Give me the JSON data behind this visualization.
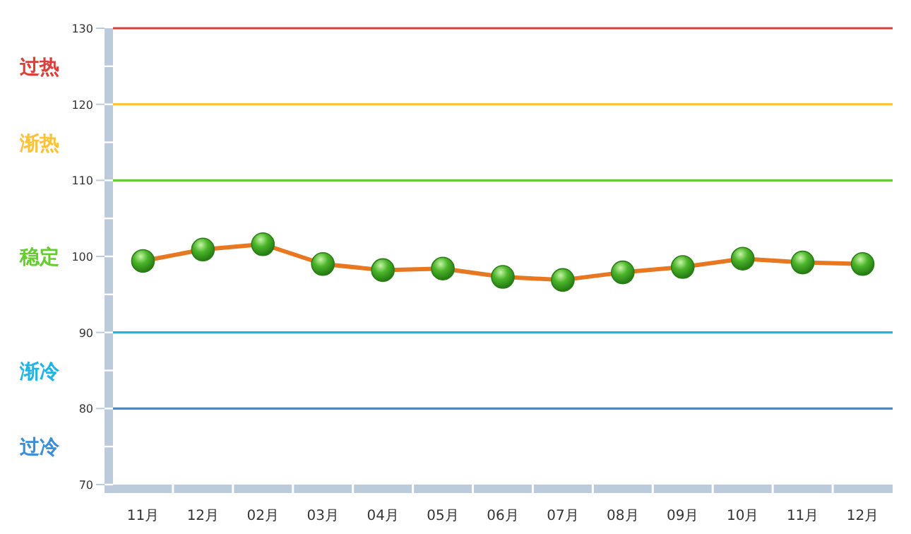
{
  "chart_data": {
    "type": "line",
    "marker": "circle",
    "categories": [
      "11月",
      "12月",
      "02月",
      "03月",
      "04月",
      "05月",
      "06月",
      "07月",
      "08月",
      "09月",
      "10月",
      "11月",
      "12月"
    ],
    "series": [
      {
        "color": "#e87722",
        "values": [
          99.4,
          100.9,
          101.6,
          99.0,
          98.2,
          98.4,
          97.3,
          96.9,
          97.9,
          98.6,
          99.7,
          99.2,
          99.0
        ]
      }
    ],
    "ylim": [
      70,
      130
    ],
    "yticks": [
      70,
      80,
      90,
      100,
      110,
      120,
      130
    ],
    "ref_lines": [
      {
        "axis": "y",
        "value": 130,
        "color": "#d9403a"
      },
      {
        "axis": "y",
        "value": 120,
        "color": "#ffc03a"
      },
      {
        "axis": "y",
        "value": 110,
        "color": "#66cc33"
      },
      {
        "axis": "y",
        "value": 90,
        "color": "#1eb4e6"
      },
      {
        "axis": "y",
        "value": 80,
        "color": "#3a8fd6"
      }
    ],
    "annotations": [
      "过热",
      "渐热",
      "稳定",
      "渐冷",
      "过冷"
    ]
  }
}
